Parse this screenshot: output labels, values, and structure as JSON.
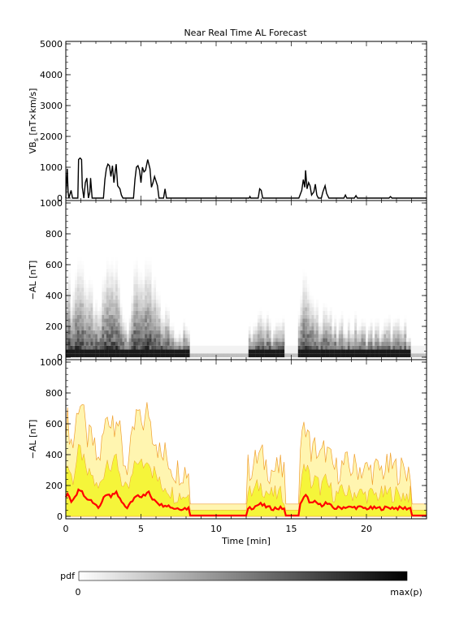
{
  "chart_data": {
    "title": "Near Real Time AL Forecast",
    "xlabel": "Time [min]",
    "x_ticks": [
      0,
      5,
      10,
      15,
      20
    ],
    "xlim": [
      0,
      24
    ],
    "panels": [
      {
        "type": "line",
        "ylabel": "VB",
        "ylabel_sub": "s",
        "ylabel_unit": " [nT×km/s]",
        "ylim": [
          0,
          5000
        ],
        "y_ticks": [
          0,
          1000,
          2000,
          3000,
          4000,
          5000
        ],
        "series": [
          {
            "points": [
              [
                0,
                0
              ],
              [
                0.1,
                950
              ],
              [
                0.15,
                200
              ],
              [
                0.2,
                0
              ],
              [
                0.35,
                250
              ],
              [
                0.45,
                0
              ],
              [
                0.8,
                0
              ],
              [
                0.85,
                1250
              ],
              [
                0.95,
                1300
              ],
              [
                1.05,
                1250
              ],
              [
                1.1,
                350
              ],
              [
                1.2,
                0
              ],
              [
                1.3,
                500
              ],
              [
                1.4,
                650
              ],
              [
                1.5,
                0
              ],
              [
                1.6,
                200
              ],
              [
                1.65,
                650
              ],
              [
                1.75,
                0
              ],
              [
                2.5,
                0
              ],
              [
                2.6,
                600
              ],
              [
                2.7,
                950
              ],
              [
                2.8,
                1100
              ],
              [
                2.9,
                1050
              ],
              [
                3.0,
                700
              ],
              [
                3.1,
                1050
              ],
              [
                3.2,
                500
              ],
              [
                3.3,
                900
              ],
              [
                3.35,
                1100
              ],
              [
                3.45,
                400
              ],
              [
                3.6,
                300
              ],
              [
                3.7,
                100
              ],
              [
                3.8,
                0
              ],
              [
                4.5,
                0
              ],
              [
                4.6,
                600
              ],
              [
                4.7,
                1000
              ],
              [
                4.8,
                1050
              ],
              [
                4.9,
                900
              ],
              [
                5.0,
                500
              ],
              [
                5.1,
                1000
              ],
              [
                5.2,
                850
              ],
              [
                5.3,
                900
              ],
              [
                5.45,
                1250
              ],
              [
                5.6,
                950
              ],
              [
                5.7,
                350
              ],
              [
                5.8,
                500
              ],
              [
                5.9,
                700
              ],
              [
                6.0,
                550
              ],
              [
                6.1,
                400
              ],
              [
                6.2,
                0
              ],
              [
                6.5,
                0
              ],
              [
                6.6,
                300
              ],
              [
                6.7,
                0
              ],
              [
                12.2,
                0
              ],
              [
                12.25,
                50
              ],
              [
                12.3,
                0
              ],
              [
                12.8,
                0
              ],
              [
                12.9,
                300
              ],
              [
                13.0,
                250
              ],
              [
                13.1,
                0
              ],
              [
                15.5,
                0
              ],
              [
                15.7,
                250
              ],
              [
                15.8,
                600
              ],
              [
                15.9,
                350
              ],
              [
                15.95,
                900
              ],
              [
                16.05,
                300
              ],
              [
                16.15,
                500
              ],
              [
                16.25,
                400
              ],
              [
                16.35,
                100
              ],
              [
                16.5,
                200
              ],
              [
                16.6,
                450
              ],
              [
                16.7,
                100
              ],
              [
                16.8,
                0
              ],
              [
                17.0,
                0
              ],
              [
                17.1,
                200
              ],
              [
                17.25,
                400
              ],
              [
                17.35,
                150
              ],
              [
                17.5,
                0
              ],
              [
                18.5,
                0
              ],
              [
                18.6,
                100
              ],
              [
                18.7,
                0
              ],
              [
                19.2,
                0
              ],
              [
                19.3,
                80
              ],
              [
                19.4,
                0
              ],
              [
                21.5,
                0
              ],
              [
                21.6,
                50
              ],
              [
                21.7,
                0
              ],
              [
                24,
                0
              ]
            ]
          }
        ]
      },
      {
        "type": "heatmap",
        "ylabel": "−AL [nT]",
        "ylim": [
          0,
          1000
        ],
        "y_ticks": [
          0,
          200,
          400,
          600,
          800,
          1000
        ]
      },
      {
        "type": "area",
        "ylabel": "−AL [nT]",
        "ylim": [
          0,
          1000
        ],
        "y_ticks": [
          0,
          200,
          400,
          600,
          800,
          1000
        ],
        "band_colors": {
          "outer": "#fff5b0",
          "inner": "#f5f53a",
          "edge": "#f0a030",
          "median": "#ff0000"
        }
      }
    ],
    "colorbar": {
      "label": "pdf",
      "min_label": "0",
      "max_label": "max(p)"
    }
  }
}
